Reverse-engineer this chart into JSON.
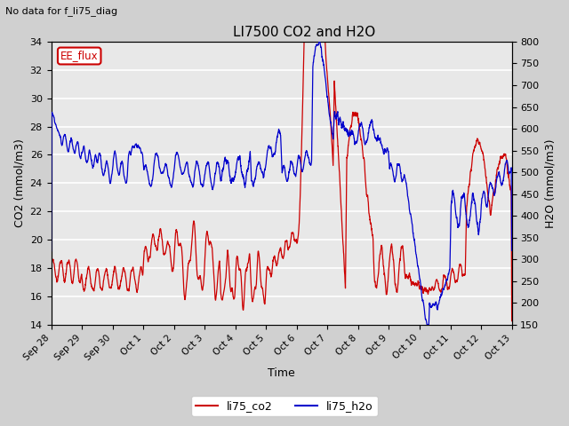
{
  "title": "LI7500 CO2 and H2O",
  "xlabel": "Time",
  "ylabel_left": "CO2 (mmol/m3)",
  "ylabel_right": "H2O (mmol/m3)",
  "ylim_left": [
    14,
    34
  ],
  "ylim_right": [
    150,
    800
  ],
  "no_data_text": "No data for f_li75_diag",
  "legend_label1": "li75_co2",
  "legend_label2": "li75_h2o",
  "ee_flux_label": "EE_flux",
  "color_co2": "#cc0000",
  "color_h2o": "#0000cc",
  "bg_color": "#e8e8e8",
  "fig_bg_color": "#d0d0d0",
  "grid_color": "#ffffff",
  "xtick_labels": [
    "Sep 28",
    "Sep 29",
    "Sep 30",
    "Oct 1",
    "Oct 2",
    "Oct 3",
    "Oct 4",
    "Oct 5",
    "Oct 6",
    "Oct 7",
    "Oct 8",
    "Oct 9",
    "Oct 10",
    "Oct 11",
    "Oct 12",
    "Oct 13"
  ],
  "yticks_left": [
    14,
    16,
    18,
    20,
    22,
    24,
    26,
    28,
    30,
    32,
    34
  ],
  "yticks_right": [
    150,
    200,
    250,
    300,
    350,
    400,
    450,
    500,
    550,
    600,
    650,
    700,
    750,
    800
  ],
  "linewidth": 0.9
}
